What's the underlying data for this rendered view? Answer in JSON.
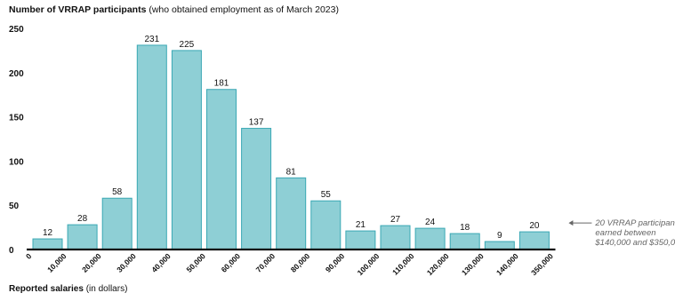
{
  "header": {
    "title_bold": "Number of VRRAP participants",
    "title_rest": " (who obtained employment as of March 2023)"
  },
  "footer": {
    "xlabel_bold": "Reported salaries",
    "xlabel_rest": " (in dollars)"
  },
  "chart_data": {
    "type": "bar",
    "title": "Number of VRRAP participants (who obtained employment as of March 2023)",
    "xlabel": "Reported salaries (in dollars)",
    "ylabel": "",
    "ylim": [
      0,
      250
    ],
    "yticks": [
      0,
      50,
      100,
      150,
      200,
      250
    ],
    "x_tick_labels": [
      "0",
      "10,000",
      "20,000",
      "30,000",
      "40,000",
      "50,000",
      "60,000",
      "70,000",
      "80,000",
      "90,000",
      "100,000",
      "110,000",
      "120,000",
      "130,000",
      "140,000",
      "350,000"
    ],
    "bins": [
      {
        "from": "0",
        "to": "10,000",
        "value": 12
      },
      {
        "from": "10,000",
        "to": "20,000",
        "value": 28
      },
      {
        "from": "20,000",
        "to": "30,000",
        "value": 58
      },
      {
        "from": "30,000",
        "to": "40,000",
        "value": 231
      },
      {
        "from": "40,000",
        "to": "50,000",
        "value": 225
      },
      {
        "from": "50,000",
        "to": "60,000",
        "value": 181
      },
      {
        "from": "60,000",
        "to": "70,000",
        "value": 137
      },
      {
        "from": "70,000",
        "to": "80,000",
        "value": 81
      },
      {
        "from": "80,000",
        "to": "90,000",
        "value": 55
      },
      {
        "from": "90,000",
        "to": "100,000",
        "value": 21
      },
      {
        "from": "100,000",
        "to": "110,000",
        "value": 27
      },
      {
        "from": "110,000",
        "to": "120,000",
        "value": 24
      },
      {
        "from": "120,000",
        "to": "130,000",
        "value": 18
      },
      {
        "from": "130,000",
        "to": "140,000",
        "value": 9
      },
      {
        "from": "140,000",
        "to": "350,000",
        "value": 20
      }
    ],
    "annotation": {
      "lines": [
        "20 VRRAP participants",
        "earned between",
        "$140,000 and $350,000"
      ]
    },
    "grid": false,
    "legend": "none",
    "colors": {
      "bar_fill": "#8ecfd5",
      "bar_stroke": "#3aa8b4",
      "axis": "#111111",
      "annotation": "#666666"
    }
  }
}
